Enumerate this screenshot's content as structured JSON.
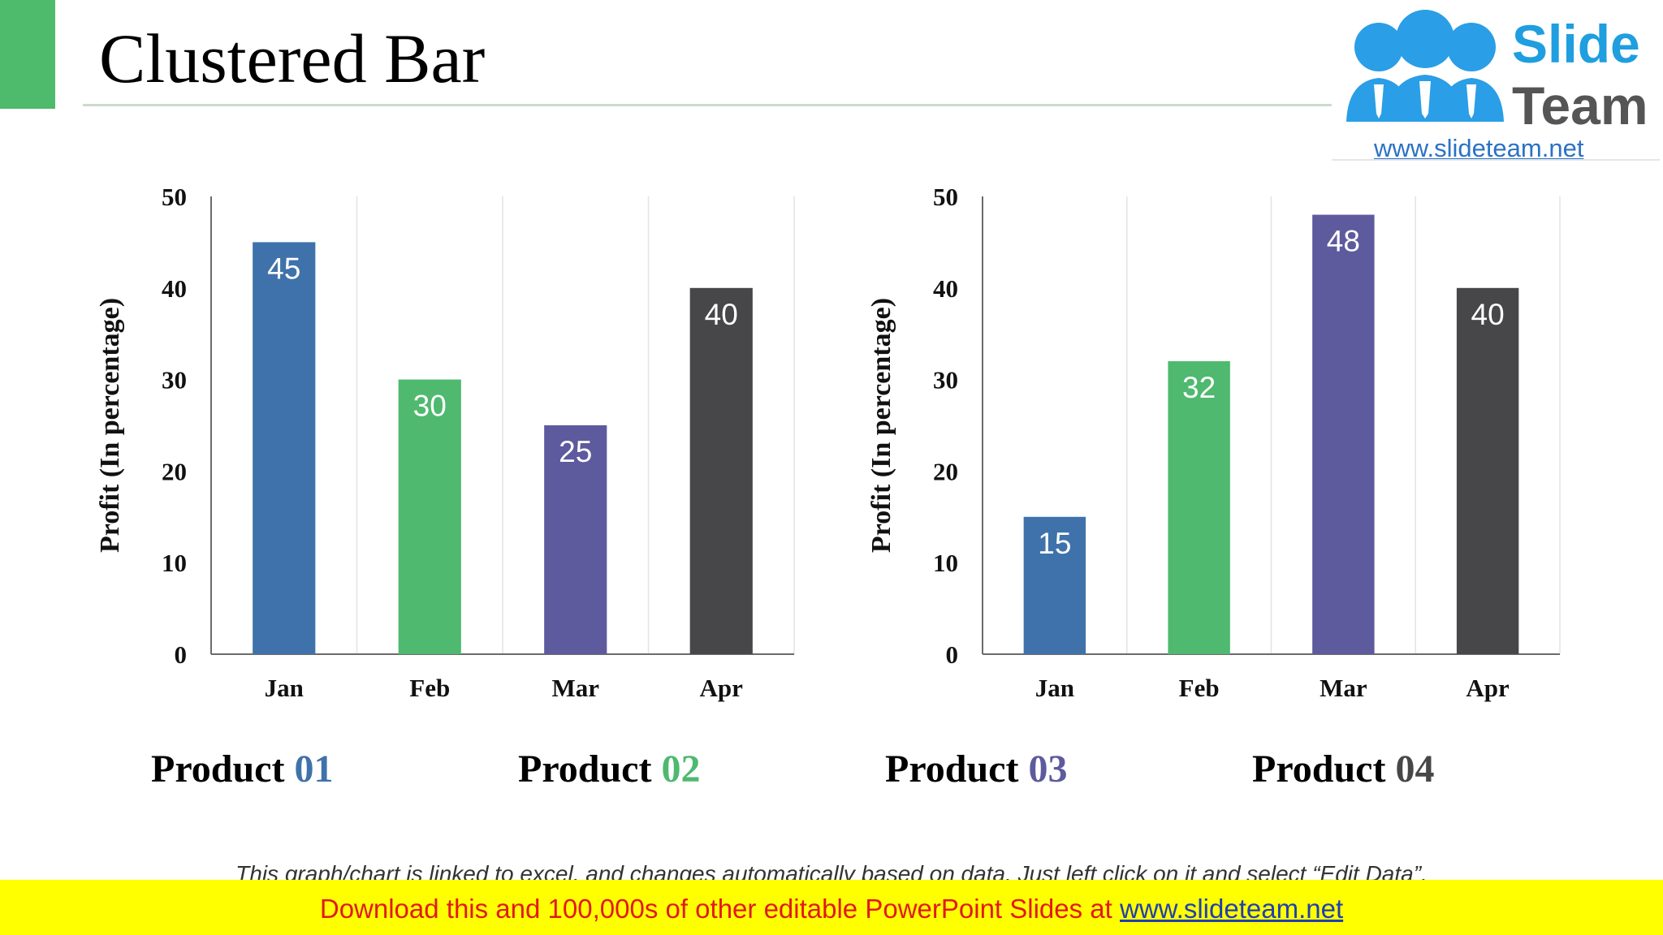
{
  "slide": {
    "title": "Clustered Bar",
    "accent_color": "#4dba6c"
  },
  "logo": {
    "word1": "Slide",
    "word2": "Team",
    "url": "www.slideteam.net",
    "icon": "people-icon"
  },
  "chart_data": [
    {
      "type": "bar",
      "categories": [
        "Jan",
        "Feb",
        "Mar",
        "Apr"
      ],
      "values": [
        45,
        30,
        25,
        40
      ],
      "colors": [
        "#3f72aa",
        "#4fb96f",
        "#5e5a9e",
        "#474749"
      ],
      "data_labels": [
        "45",
        "30",
        "25",
        "40"
      ],
      "ylabel": "Profit  (In percentage)",
      "ylim": [
        0,
        50
      ],
      "yticks": [
        0,
        10,
        20,
        30,
        40,
        50
      ],
      "ytick_labels": [
        "0",
        "10",
        "20",
        "30",
        "40",
        "50"
      ],
      "grid": "vertical"
    },
    {
      "type": "bar",
      "categories": [
        "Jan",
        "Feb",
        "Mar",
        "Apr"
      ],
      "values": [
        15,
        32,
        48,
        40
      ],
      "colors": [
        "#3f72aa",
        "#4fb96f",
        "#5e5a9e",
        "#474749"
      ],
      "data_labels": [
        "15",
        "32",
        "48",
        "40"
      ],
      "ylabel": "Profit  (In percentage)",
      "ylim": [
        0,
        50
      ],
      "yticks": [
        0,
        10,
        20,
        30,
        40,
        50
      ],
      "ytick_labels": [
        "0",
        "10",
        "20",
        "30",
        "40",
        "50"
      ],
      "grid": "vertical"
    }
  ],
  "products": [
    {
      "word": "Product",
      "number": "01",
      "number_color": "#3f72aa"
    },
    {
      "word": "Product",
      "number": "02",
      "number_color": "#4fb96f"
    },
    {
      "word": "Product",
      "number": "03",
      "number_color": "#5e5a9e"
    },
    {
      "word": "Product",
      "number": "04",
      "number_color": "#474749"
    }
  ],
  "note": "This graph/chart is linked to excel, and changes automatically based on data.  Just left click on it and select “Edit Data”.",
  "footer": {
    "text": "Download this and 100,000s of other editable PowerPoint Slides at ",
    "link": "www.slideteam.net"
  }
}
